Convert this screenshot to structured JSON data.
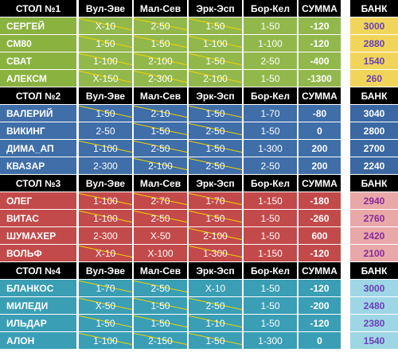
{
  "columns": [
    "Вул-Эве",
    "Мал-Сев",
    "Эрк-Эсп",
    "Бор-Кел",
    "СУММА"
  ],
  "bank_label": "БАНК",
  "tables": [
    {
      "title": "СТОЛ №1",
      "rows": [
        {
          "name": "СЕРГЕЙ",
          "c": [
            "X-10",
            "2-50",
            "1-50",
            "1-50"
          ],
          "sum": "-120",
          "bank": "3000"
        },
        {
          "name": "СМ80",
          "c": [
            "1-50",
            "1-50",
            "1-100",
            "1-100"
          ],
          "sum": "-120",
          "bank": "2880"
        },
        {
          "name": "СВАТ",
          "c": [
            "1-100",
            "2-100",
            "1-50",
            "2-50"
          ],
          "sum": "-400",
          "bank": "1540"
        },
        {
          "name": "АЛЕКСМ",
          "c": [
            "X-150",
            "2-300",
            "2-100",
            "1-50"
          ],
          "sum": "-1300",
          "bank": "260"
        }
      ]
    },
    {
      "title": "СТОЛ №2",
      "rows": [
        {
          "name": "ВАЛЕРИЙ",
          "c": [
            "1-50",
            "2-10",
            "1-50",
            "1-70"
          ],
          "sum": "-80",
          "bank": "3040"
        },
        {
          "name": "ВИКИНГ",
          "c": [
            "2-50",
            "1-50",
            "2-50",
            "1-50"
          ],
          "sum": "0",
          "bank": "2800"
        },
        {
          "name": "ДИМА_АП",
          "c": [
            "1-100",
            "2-50",
            "1-50",
            "1-300"
          ],
          "sum": "200",
          "bank": "2700"
        },
        {
          "name": "КВАЗАР",
          "c": [
            "2-300",
            "2-100",
            "2-50",
            "2-50"
          ],
          "sum": "200",
          "bank": "2240"
        }
      ]
    },
    {
      "title": "СТОЛ №3",
      "rows": [
        {
          "name": "ОЛЕГ",
          "c": [
            "1-100",
            "2-70",
            "1-70",
            "1-150"
          ],
          "sum": "-180",
          "bank": "2940"
        },
        {
          "name": "ВИТАС",
          "c": [
            "1-100",
            "2-50",
            "1-50",
            "1-50"
          ],
          "sum": "-260",
          "bank": "2760"
        },
        {
          "name": "ШУМАХЕР",
          "c": [
            "2-300",
            "X-50",
            "2-100",
            "1-50"
          ],
          "sum": "600",
          "bank": "2420"
        },
        {
          "name": "ВОЛЬФ",
          "c": [
            "X-10",
            "X-100",
            "1-300",
            "1-150"
          ],
          "sum": "-120",
          "bank": "2100"
        }
      ]
    },
    {
      "title": "СТОЛ №4",
      "rows": [
        {
          "name": "БЛАНКОС",
          "c": [
            "1-70",
            "2-50",
            "X-10",
            "1-50"
          ],
          "sum": "-120",
          "bank": "3000"
        },
        {
          "name": "МИЛЕДИ",
          "c": [
            "X-50",
            "1-50",
            "2-50",
            "1-50"
          ],
          "sum": "-200",
          "bank": "2480"
        },
        {
          "name": "ИЛЬДАР",
          "c": [
            "1-50",
            "1-50",
            "1-10",
            "1-50"
          ],
          "sum": "-120",
          "bank": "2380"
        },
        {
          "name": "АЛОН",
          "c": [
            "1-100",
            "2-150",
            "1-50",
            "1-300"
          ],
          "sum": "0",
          "bank": "1540"
        }
      ]
    }
  ]
}
